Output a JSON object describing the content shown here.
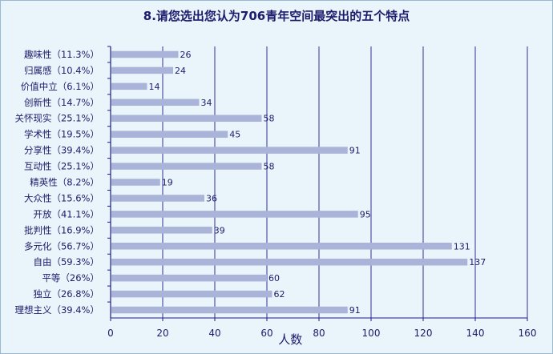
{
  "chart_data": {
    "type": "bar",
    "orientation": "horizontal",
    "title": "8.请您选出您认为706青年空间最突出的五个特点",
    "xlabel": "人数",
    "ylabel": "",
    "xlim": [
      0,
      160
    ],
    "xticks": [
      "0",
      "20",
      "40",
      "60",
      "80",
      "100",
      "120",
      "140",
      "160"
    ],
    "grid": true,
    "categories": [
      "趣味性（11.3%）",
      "归属感（10.4%）",
      "价值中立（6.1%）",
      "创新性（14.7%）",
      "关怀现实（25.1%）",
      "学术性（19.5%）",
      "分享性（39.4%）",
      "互动性（25.1%）",
      "精英性（8.2%）",
      "大众性（15.6%）",
      "开放（41.1%）",
      "批判性（16.9%）",
      "多元化（56.7%）",
      "自由（59.3%）",
      "平等（26%）",
      "独立（26.8%）",
      "理想主义（39.4%）"
    ],
    "values": [
      26,
      24,
      14,
      34,
      58,
      45,
      91,
      58,
      19,
      36,
      95,
      39,
      131,
      137,
      60,
      62,
      91
    ],
    "bar_color": "#a9b4d8",
    "grid_color": "#1c1c8c",
    "text_color": "#1c1c6b"
  }
}
